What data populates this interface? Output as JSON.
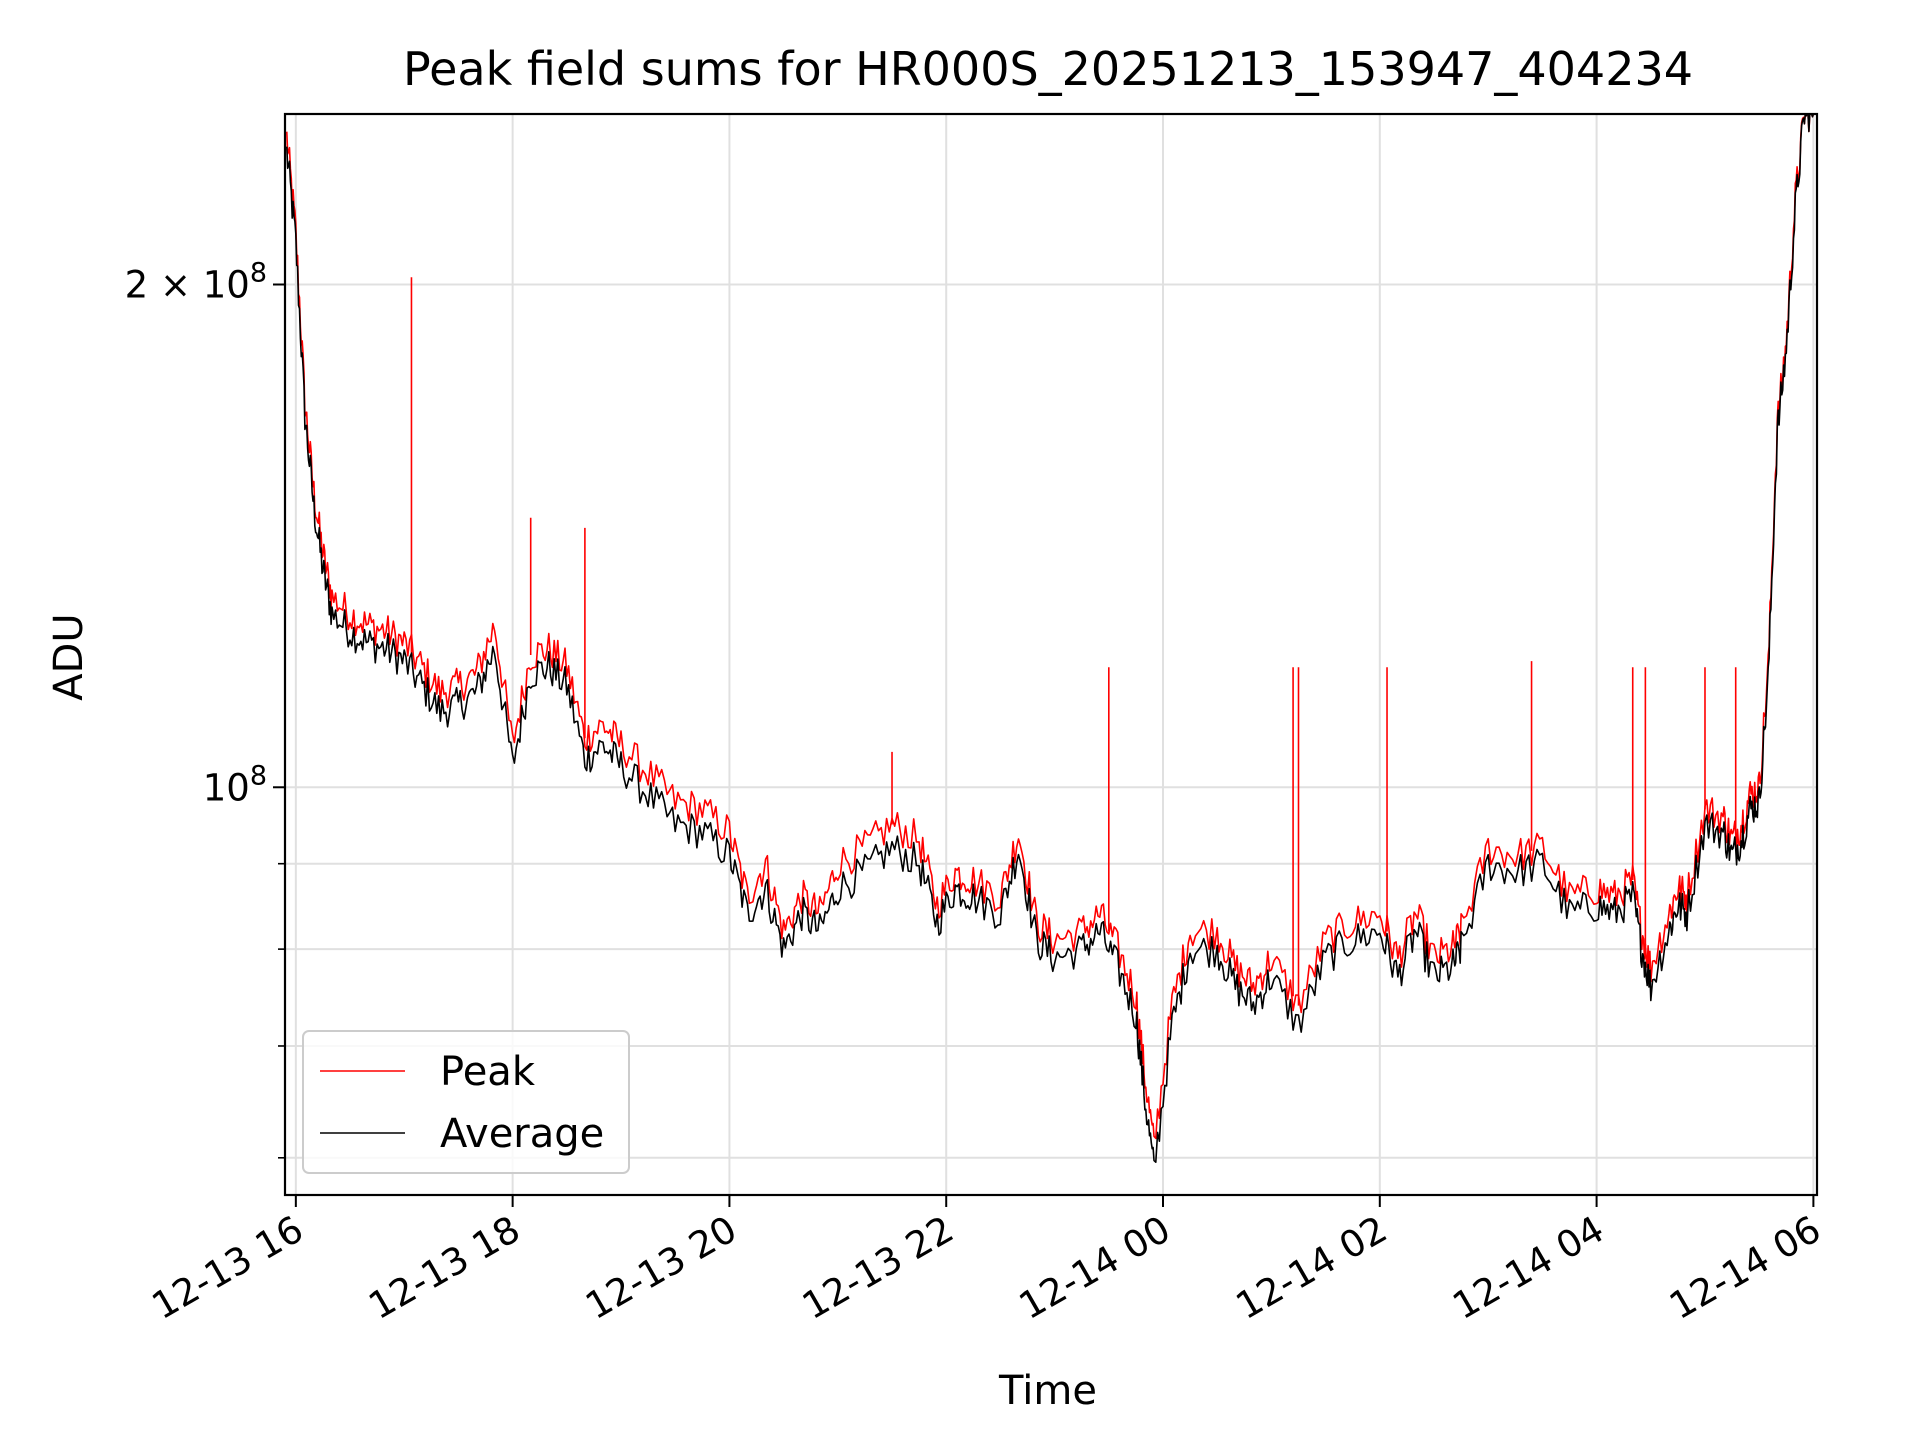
{
  "chart_data": {
    "type": "line",
    "title": "Peak field sums for HR000S_20251213_153947_404234",
    "xlabel": "Time",
    "ylabel": "ADU",
    "y_scale": "log",
    "grid": true,
    "legend_position": "lower-left",
    "xlim": [
      "2025-12-13 15:54",
      "2025-12-14 06:02"
    ],
    "ylim": [
      57000000,
      253000000
    ],
    "x_ticks": [
      "12-13 16",
      "12-13 18",
      "12-13 20",
      "12-13 22",
      "12-14 00",
      "12-14 02",
      "12-14 04",
      "12-14 06"
    ],
    "x_tick_times": [
      "2025-12-13 16:00",
      "2025-12-13 18:00",
      "2025-12-13 20:00",
      "2025-12-13 22:00",
      "2025-12-14 00:00",
      "2025-12-14 02:00",
      "2025-12-14 04:00",
      "2025-12-14 06:00"
    ],
    "y_ticks": [
      {
        "mantissa": "",
        "exponent": "8",
        "value": 100000000
      },
      {
        "mantissa": "2 × 10",
        "exponent": "8",
        "value": 200000000
      }
    ],
    "x": [
      "2025-12-13 15:55",
      "2025-12-13 16:00",
      "2025-12-13 16:05",
      "2025-12-13 16:10",
      "2025-12-13 16:15",
      "2025-12-13 16:20",
      "2025-12-13 16:30",
      "2025-12-13 16:40",
      "2025-12-13 16:50",
      "2025-12-13 17:00",
      "2025-12-13 17:10",
      "2025-12-13 17:20",
      "2025-12-13 17:30",
      "2025-12-13 17:40",
      "2025-12-13 17:50",
      "2025-12-13 18:00",
      "2025-12-13 18:10",
      "2025-12-13 18:20",
      "2025-12-13 18:30",
      "2025-12-13 18:40",
      "2025-12-13 18:50",
      "2025-12-13 19:00",
      "2025-12-13 19:15",
      "2025-12-13 19:30",
      "2025-12-13 19:45",
      "2025-12-13 20:00",
      "2025-12-13 20:10",
      "2025-12-13 20:20",
      "2025-12-13 20:30",
      "2025-12-13 20:40",
      "2025-12-13 20:50",
      "2025-12-13 21:00",
      "2025-12-13 21:15",
      "2025-12-13 21:30",
      "2025-12-13 21:45",
      "2025-12-13 21:55",
      "2025-12-13 22:05",
      "2025-12-13 22:15",
      "2025-12-13 22:30",
      "2025-12-13 22:40",
      "2025-12-13 22:50",
      "2025-12-13 23:00",
      "2025-12-13 23:15",
      "2025-12-13 23:25",
      "2025-12-13 23:35",
      "2025-12-13 23:45",
      "2025-12-13 23:50",
      "2025-12-13 23:55",
      "2025-12-14 00:05",
      "2025-12-14 00:15",
      "2025-12-14 00:30",
      "2025-12-14 00:40",
      "2025-12-14 00:50",
      "2025-12-14 01:00",
      "2025-12-14 01:15",
      "2025-12-14 01:30",
      "2025-12-14 01:45",
      "2025-12-14 02:00",
      "2025-12-14 02:10",
      "2025-12-14 02:20",
      "2025-12-14 02:30",
      "2025-12-14 02:40",
      "2025-12-14 02:45",
      "2025-12-14 03:00",
      "2025-12-14 03:15",
      "2025-12-14 03:30",
      "2025-12-14 03:45",
      "2025-12-14 04:00",
      "2025-12-14 04:10",
      "2025-12-14 04:20",
      "2025-12-14 04:25",
      "2025-12-14 04:30",
      "2025-12-14 04:40",
      "2025-12-14 04:45",
      "2025-12-14 04:50",
      "2025-12-14 05:00",
      "2025-12-14 05:10",
      "2025-12-14 05:15",
      "2025-12-14 05:20",
      "2025-12-14 05:25",
      "2025-12-14 05:30",
      "2025-12-14 05:35",
      "2025-12-14 05:40",
      "2025-12-14 05:45",
      "2025-12-14 05:50",
      "2025-12-14 05:55",
      "2025-12-14 06:00"
    ],
    "series": [
      {
        "name": "Peak",
        "color": "#ff0000",
        "values": [
          245000000,
          215000000,
          170000000,
          150000000,
          138000000,
          130000000,
          127000000,
          125000000,
          124000000,
          122000000,
          118000000,
          114000000,
          115000000,
          117000000,
          125000000,
          106000000,
          120000000,
          121000000,
          118000000,
          107000000,
          109000000,
          106000000,
          102000000,
          98000000,
          97000000,
          94000000,
          86000000,
          90000000,
          82000000,
          86000000,
          84000000,
          90000000,
          92000000,
          95000000,
          93000000,
          85000000,
          89000000,
          88000000,
          86000000,
          94000000,
          83000000,
          81000000,
          82000000,
          84000000,
          80000000,
          75000000,
          67000000,
          61000000,
          74000000,
          82000000,
          82000000,
          78000000,
          76000000,
          79000000,
          74000000,
          81000000,
          83000000,
          84000000,
          79000000,
          84000000,
          79000000,
          80000000,
          82000000,
          92000000,
          91000000,
          92000000,
          86000000,
          87000000,
          86000000,
          88000000,
          82000000,
          78000000,
          84000000,
          87000000,
          86000000,
          97000000,
          96000000,
          93000000,
          95000000,
          99000000,
          100000000,
          118000000,
          165000000,
          185000000,
          225000000,
          253000000,
          253000000
        ]
      },
      {
        "name": "Average",
        "color": "#000000",
        "values": [
          240000000,
          212000000,
          167000000,
          147000000,
          135000000,
          127000000,
          124000000,
          122000000,
          121000000,
          119000000,
          115000000,
          111000000,
          112000000,
          114000000,
          121000000,
          103000000,
          117000000,
          118000000,
          115000000,
          104000000,
          106000000,
          103000000,
          99000000,
          95000000,
          94000000,
          91000000,
          84000000,
          87000000,
          80000000,
          84000000,
          82000000,
          87000000,
          89000000,
          92000000,
          90000000,
          83000000,
          87000000,
          86000000,
          84000000,
          92000000,
          81000000,
          79000000,
          80000000,
          82000000,
          78000000,
          73000000,
          65000000,
          59000000,
          72000000,
          80000000,
          80000000,
          76000000,
          74000000,
          77000000,
          72000000,
          79000000,
          81000000,
          82000000,
          77000000,
          82000000,
          77000000,
          78000000,
          80000000,
          90000000,
          89000000,
          90000000,
          84000000,
          85000000,
          84000000,
          86000000,
          80000000,
          76000000,
          82000000,
          85000000,
          84000000,
          95000000,
          94000000,
          91000000,
          93000000,
          97000000,
          98000000,
          116000000,
          163000000,
          183000000,
          222000000,
          253000000,
          253000000
        ]
      }
    ],
    "peak_spikes": [
      {
        "x": "2025-12-13 17:04",
        "value": 202000000
      },
      {
        "x": "2025-12-13 18:10",
        "value": 145000000
      },
      {
        "x": "2025-12-13 18:40",
        "value": 143000000
      },
      {
        "x": "2025-12-13 21:30",
        "value": 105000000
      },
      {
        "x": "2025-12-13 23:30",
        "value": 118000000
      },
      {
        "x": "2025-12-14 01:12",
        "value": 118000000
      },
      {
        "x": "2025-12-14 01:15",
        "value": 118000000
      },
      {
        "x": "2025-12-14 02:04",
        "value": 118000000
      },
      {
        "x": "2025-12-14 03:24",
        "value": 119000000
      },
      {
        "x": "2025-12-14 04:20",
        "value": 118000000
      },
      {
        "x": "2025-12-14 04:27",
        "value": 118000000
      },
      {
        "x": "2025-12-14 05:00",
        "value": 118000000
      },
      {
        "x": "2025-12-14 05:17",
        "value": 118000000
      }
    ]
  }
}
